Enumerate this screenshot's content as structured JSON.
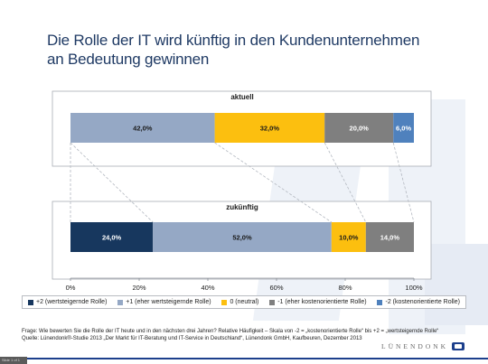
{
  "title": {
    "line1": "Die Rolle der IT wird künftig in den Kundenunternehmen",
    "line2": "an Bedeutung gewinnen"
  },
  "chart_data": {
    "type": "bar",
    "orientation": "horizontal-stacked",
    "categories": [
      "aktuell",
      "zukünftig"
    ],
    "series": [
      {
        "name": "+2 (wertsteigernde Rolle)",
        "color": "#17375e",
        "label_color": "#ffffff",
        "values": [
          0,
          24
        ]
      },
      {
        "name": "+1 (eher wertsteigernde Rolle)",
        "color": "#95a8c5",
        "label_color": "#1a1a1a",
        "values": [
          42,
          52
        ]
      },
      {
        "name": "0 (neutral)",
        "color": "#fcbf0f",
        "label_color": "#1a1a1a",
        "values": [
          32,
          10
        ]
      },
      {
        "name": "-1 (eher kostenorientierte Rolle)",
        "color": "#7f7f7f",
        "label_color": "#ffffff",
        "values": [
          20,
          14
        ]
      },
      {
        "name": "-2 (kostenorientierte Rolle)",
        "color": "#4f81bd",
        "label_color": "#ffffff",
        "values": [
          6,
          0
        ]
      }
    ],
    "data_labels": [
      [
        "",
        "42,0%",
        "32,0%",
        "20,0%",
        "6,0%"
      ],
      [
        "24,0%",
        "52,0%",
        "10,0%",
        "14,0%",
        ""
      ]
    ],
    "xlim": [
      0,
      100
    ],
    "xticks": [
      0,
      20,
      40,
      60,
      80,
      100
    ],
    "xtick_labels": [
      "0%",
      "20%",
      "40%",
      "60%",
      "80%",
      "100%"
    ],
    "gridlines": false,
    "legend_position": "bottom"
  },
  "footnote": {
    "question": "Frage: Wie bewerten Sie die Rolle der IT heute und in den nächsten drei Jahren? Relative Häufigkeit – Skala von -2 = „kostenorientierte Rolle“ bis +2 = „wertsteigernde Rolle“",
    "source": "Quelle: Lünendonk®-Studie 2013 „Der Markt für IT-Beratung und IT-Service in Deutschland“, Lünendonk GmbH, Kaufbeuren, Dezember 2013"
  },
  "logo": {
    "text": "LÜNENDONK"
  },
  "corner_tag": "Slide 1 of 1",
  "colors": {
    "title": "#1f3a64",
    "panel_border": "#a9adb4",
    "connector": "#b3b8c0",
    "brand_blue": "#1c3f8c"
  }
}
